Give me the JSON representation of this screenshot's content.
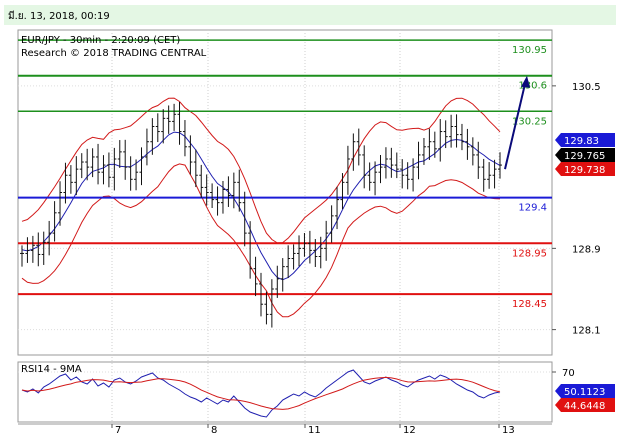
{
  "header": {
    "datetime": "มี.ย. 13, 2018, 00:19"
  },
  "chart_data": {
    "type": "candlestick",
    "title": "EUR/JPY - 30min - 2:20:09 (CET)",
    "subtitle": "Research © 2018 TRADING CENTRAL",
    "ylim": [
      127.85,
      131.05
    ],
    "y_ticks": [
      {
        "value": 130.5,
        "label": "130.5"
      },
      {
        "value": 128.9,
        "label": "128.9"
      },
      {
        "value": 128.1,
        "label": "128.1"
      }
    ],
    "x_ticks": [
      "7",
      "8",
      "11",
      "12",
      "13"
    ],
    "levels": [
      {
        "value": 130.95,
        "label": "130.95",
        "color": "#1d8f1d",
        "width": 1.5
      },
      {
        "value": 130.6,
        "label": "130.6",
        "color": "#1d8f1d",
        "width": 2
      },
      {
        "value": 130.25,
        "label": "130.25",
        "color": "#1d8f1d",
        "width": 1.5
      },
      {
        "value": 129.4,
        "label": "129.4",
        "color": "#1a1ad6",
        "width": 2
      },
      {
        "value": 128.95,
        "label": "128.95",
        "color": "#e01010",
        "width": 2
      },
      {
        "value": 128.45,
        "label": "128.45",
        "color": "#e01010",
        "width": 2
      }
    ],
    "price_tags": [
      {
        "value": 129.83,
        "label": "129.83",
        "bg": "#1a1ad6",
        "fg": "#ffffff"
      },
      {
        "value": 129.765,
        "label": "129.765",
        "bg": "#000000",
        "fg": "#ffffff"
      },
      {
        "value": 129.738,
        "label": "129.738",
        "bg": "#e01010",
        "fg": "#ffffff"
      }
    ],
    "projection": {
      "from": 129.68,
      "to": 130.6,
      "color": "#0a0a7a"
    },
    "series": [
      {
        "name": "price",
        "values": [
          128.85,
          128.88,
          128.93,
          128.84,
          128.96,
          129.05,
          129.25,
          129.45,
          129.62,
          129.55,
          129.68,
          129.75,
          129.7,
          129.8,
          129.65,
          129.72,
          129.6,
          129.78,
          129.85,
          129.7,
          129.58,
          129.65,
          129.8,
          129.95,
          130.1,
          130.05,
          130.18,
          130.15,
          130.22,
          130.05,
          129.9,
          129.75,
          129.62,
          129.5,
          129.45,
          129.38,
          129.35,
          129.48,
          129.42,
          129.55,
          129.35,
          129.05,
          128.7,
          128.55,
          128.35,
          128.25,
          128.5,
          128.6,
          128.72,
          128.8,
          128.85,
          128.9,
          128.95,
          128.88,
          128.82,
          128.9,
          129.05,
          129.22,
          129.38,
          129.55,
          129.78,
          129.95,
          129.82,
          129.62,
          129.55,
          129.65,
          129.7,
          129.78,
          129.72,
          129.68,
          129.62,
          129.58,
          129.7,
          129.82,
          129.9,
          129.95,
          129.88,
          130.05,
          130.0,
          130.1,
          130.02,
          129.95,
          129.9,
          129.82,
          129.7,
          129.58,
          129.62,
          129.68,
          129.72
        ]
      },
      {
        "name": "rsi",
        "values": [
          52,
          50,
          53,
          49,
          55,
          58,
          62,
          66,
          68,
          62,
          65,
          60,
          58,
          63,
          56,
          59,
          55,
          62,
          64,
          60,
          58,
          61,
          65,
          67,
          69,
          64,
          62,
          58,
          55,
          52,
          48,
          45,
          43,
          40,
          44,
          41,
          38,
          42,
          40,
          46,
          40,
          34,
          30,
          28,
          26,
          25,
          32,
          36,
          42,
          45,
          48,
          46,
          50,
          47,
          45,
          49,
          54,
          58,
          62,
          66,
          70,
          72,
          66,
          60,
          58,
          61,
          63,
          65,
          62,
          60,
          57,
          55,
          59,
          62,
          64,
          66,
          63,
          67,
          65,
          62,
          58,
          55,
          52,
          50,
          46,
          44,
          47,
          49,
          50
        ]
      }
    ],
    "rsi": {
      "label": "RSI14 - 9MA",
      "ylim": [
        20,
        80
      ],
      "tick": {
        "value": 70,
        "label": "70"
      },
      "tags": [
        {
          "value": 50.1123,
          "label": "50.1123",
          "bg": "#1a1ad6",
          "fg": "#ffffff"
        },
        {
          "value": 44.6448,
          "label": "44.6448",
          "bg": "#e01010",
          "fg": "#ffffff"
        }
      ]
    }
  }
}
